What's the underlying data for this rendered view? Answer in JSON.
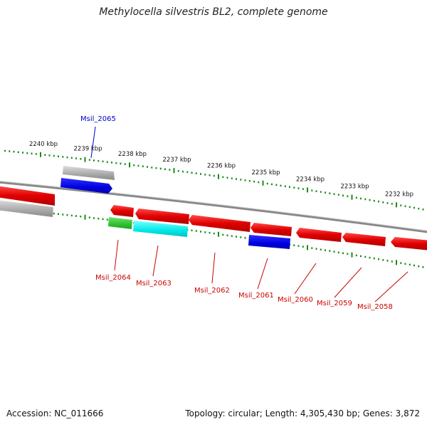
{
  "title": "Methylocella silvestris BL2, complete genome",
  "footer": {
    "accession": "Accession: NC_011666",
    "summary": "Topology: circular; Length: 4,305,430 bp; Genes: 3,872"
  },
  "colors": {
    "forward_gene": "#e00000",
    "reverse_gene": "#e00000",
    "blue_gene": "#0000ee",
    "grey_gene": "#b0b0b0",
    "green_gene": "#33cc33",
    "cyan_gene": "#00eeee",
    "tick": "#1a8a1a",
    "backbone": "#888888",
    "label_red": "#cc0000",
    "label_blue": "#0000cc"
  },
  "scale": {
    "ticks": [
      {
        "label": "2240 kbp"
      },
      {
        "label": "2239 kbp"
      },
      {
        "label": "2238 kbp"
      },
      {
        "label": "2237 kbp"
      },
      {
        "label": "2236 kbp"
      },
      {
        "label": "2235 kbp"
      },
      {
        "label": "2234 kbp"
      },
      {
        "label": "2233 kbp"
      },
      {
        "label": "2232 kbp"
      }
    ]
  },
  "genes": [
    {
      "label": "Msil_2065",
      "color": "blue"
    },
    {
      "label": "Msil_2064",
      "color": "red"
    },
    {
      "label": "Msil_2063",
      "color": "red"
    },
    {
      "label": "Msil_2062",
      "color": "red"
    },
    {
      "label": "Msil_2061",
      "color": "red"
    },
    {
      "label": "Msil_2060",
      "color": "red"
    },
    {
      "label": "Msil_2059",
      "color": "red"
    },
    {
      "label": "Msil_2058",
      "color": "red"
    }
  ]
}
